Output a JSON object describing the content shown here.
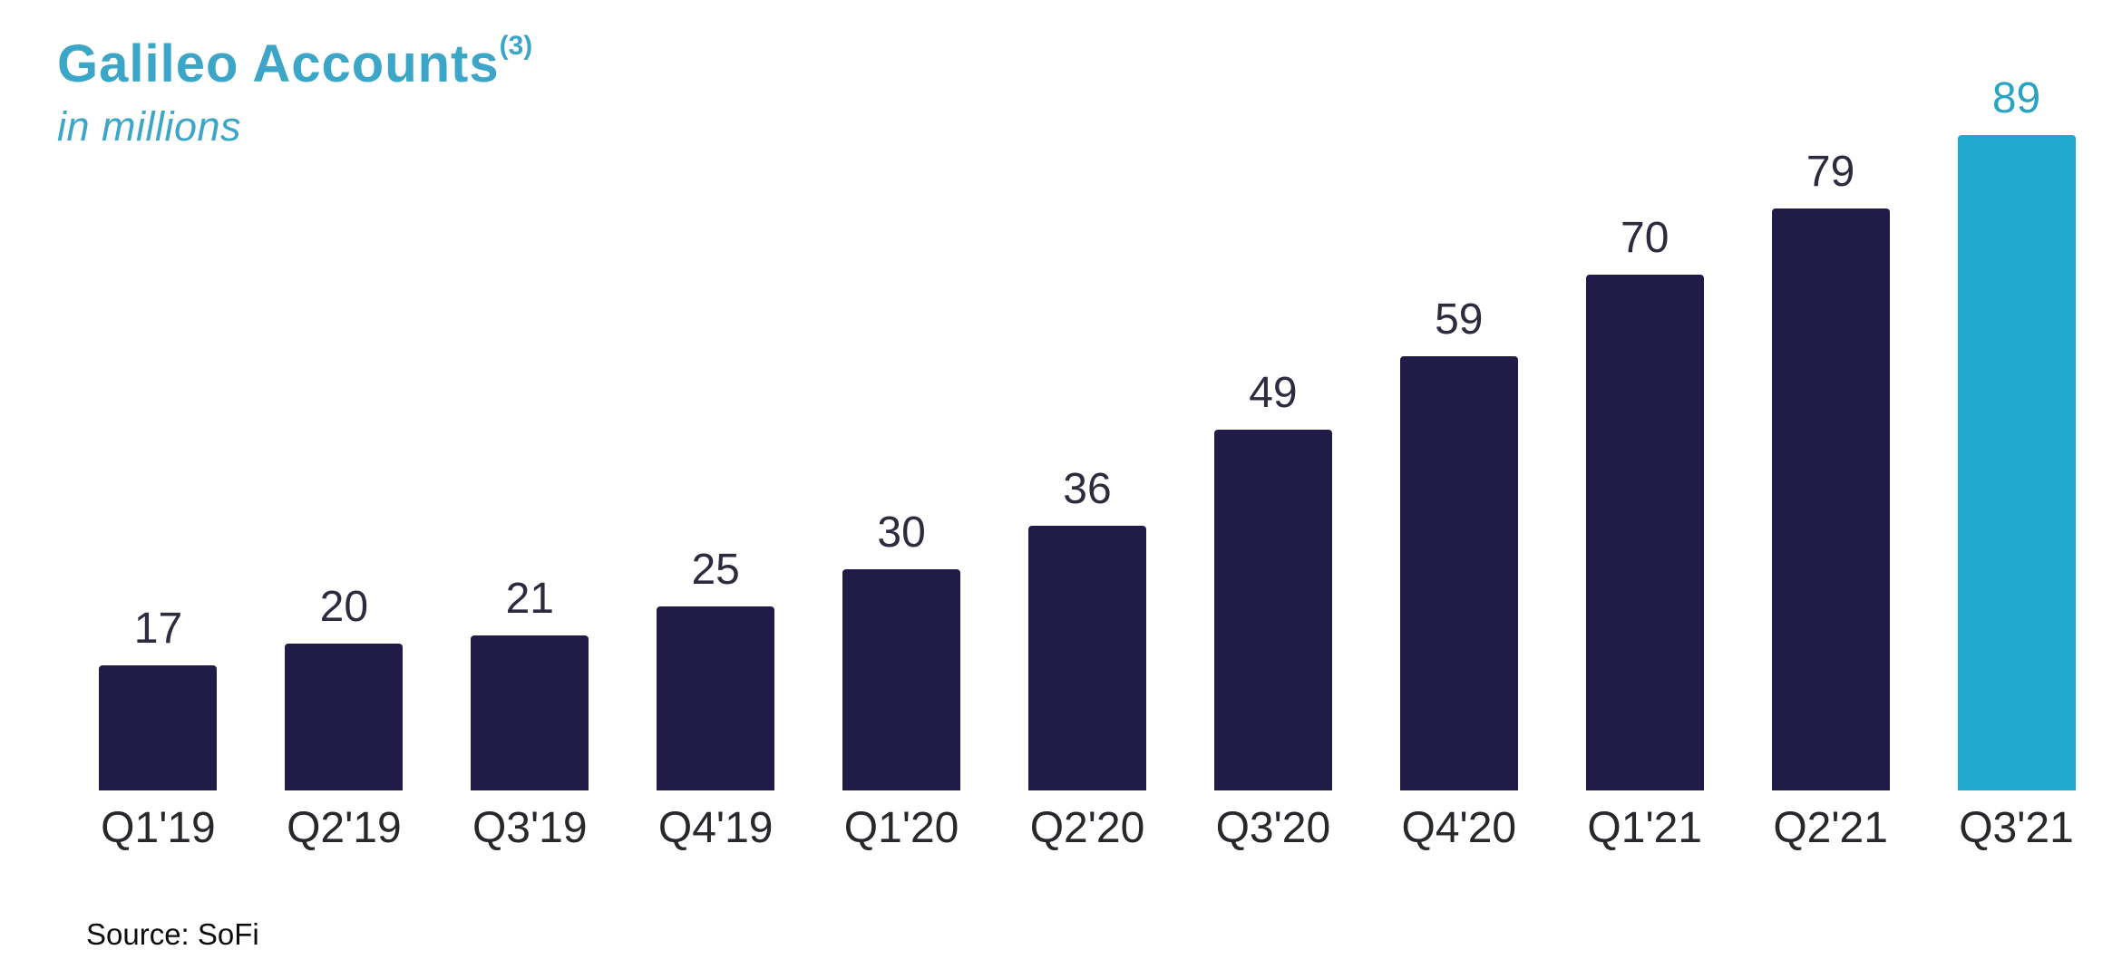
{
  "header": {
    "title": "Galileo Accounts",
    "footnote_marker": "(3)",
    "subtitle": "in millions"
  },
  "footer": {
    "source": "Source: SoFi"
  },
  "colors": {
    "bar_navy": "#211b47",
    "bar_teal": "#1fa9ce",
    "title_teal": "#3ba6c7",
    "value_label": "#2e2b3f",
    "value_label_highlight": "#2ba4c4",
    "axis_label": "#28282c"
  },
  "chart_data": {
    "type": "bar",
    "title": "Galileo Accounts (3)",
    "subtitle": "in millions",
    "categories": [
      "Q1'19",
      "Q2'19",
      "Q3'19",
      "Q4'19",
      "Q1'20",
      "Q2'20",
      "Q3'20",
      "Q4'20",
      "Q1'21",
      "Q2'21",
      "Q3'21"
    ],
    "values": [
      17,
      20,
      21,
      25,
      30,
      36,
      49,
      59,
      70,
      79,
      89
    ],
    "highlight_index": 10,
    "data_labels": true,
    "xlabel": "",
    "ylabel": "",
    "ylim": [
      0,
      92
    ],
    "grid": false,
    "legend": "none",
    "y_axis_shown": false
  }
}
